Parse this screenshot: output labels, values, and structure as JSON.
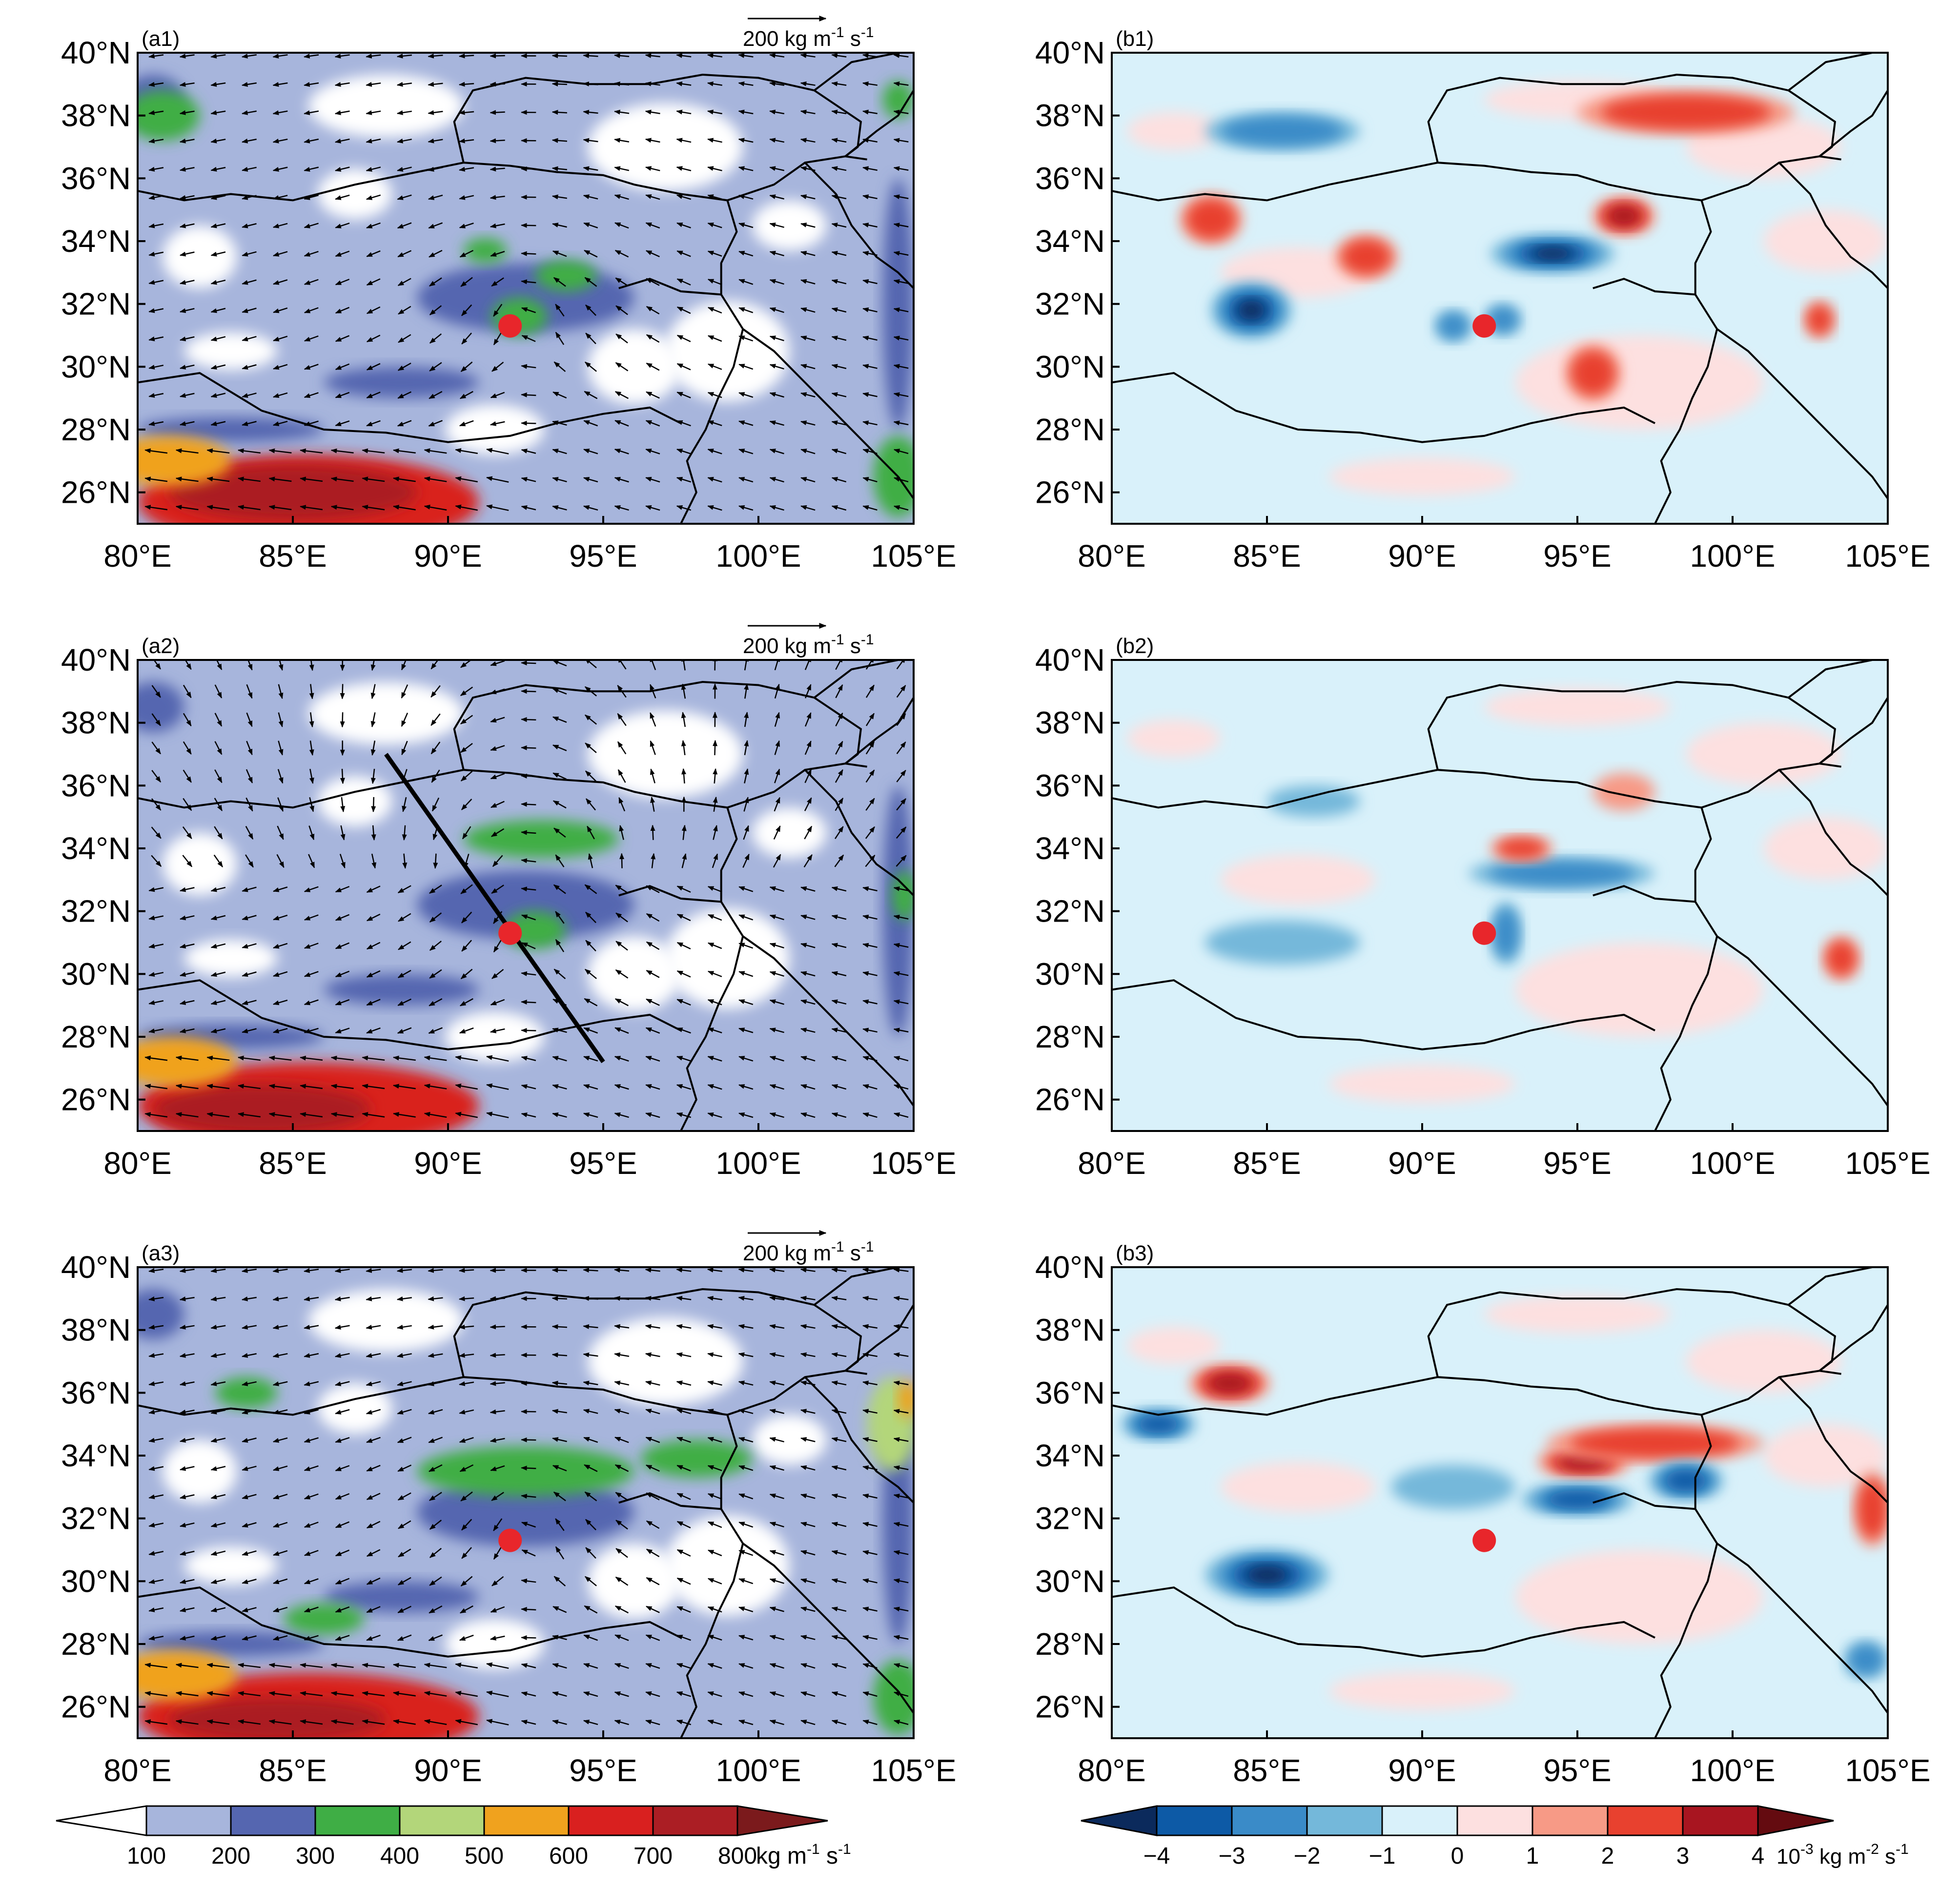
{
  "figure": {
    "lat_ticks": [
      "40°N",
      "38°N",
      "36°N",
      "34°N",
      "32°N",
      "30°N",
      "28°N",
      "26°N"
    ],
    "lon_ticks": [
      "80°E",
      "85°E",
      "90°E",
      "95°E",
      "100°E",
      "105°E"
    ],
    "lat_range": [
      25,
      40
    ],
    "lon_range": [
      80,
      105
    ],
    "station": {
      "lon": 92.0,
      "lat": 31.3,
      "color": "#e8262b"
    },
    "panels_a": [
      {
        "label": "(a1)",
        "ref_vector": {
          "value": "200",
          "unit_pre": "kg m",
          "exp1": "-1",
          "unit_mid": "s",
          "exp2": "-1"
        }
      },
      {
        "label": "(a2)",
        "ref_vector": {
          "value": "200",
          "unit_pre": "kg m",
          "exp1": "-1",
          "unit_mid": "s",
          "exp2": "-1"
        },
        "cross_section": {
          "start": {
            "lon": 88.0,
            "lat": 37.0
          },
          "end": {
            "lon": 95.0,
            "lat": 27.2
          }
        }
      },
      {
        "label": "(a3)",
        "ref_vector": {
          "value": "200",
          "unit_pre": "kg m",
          "exp1": "-1",
          "unit_mid": "s",
          "exp2": "-1"
        }
      }
    ],
    "panels_b": [
      {
        "label": "(b1)"
      },
      {
        "label": "(b2)"
      },
      {
        "label": "(b3)"
      }
    ],
    "colorbar_a": {
      "colors": [
        "#ffffff",
        "#a7b5dc",
        "#5566b0",
        "#3fae45",
        "#b3d67a",
        "#f0a21e",
        "#d9201f",
        "#ab1e24",
        "#7b1a1c"
      ],
      "labels": [
        "100",
        "200",
        "300",
        "400",
        "500",
        "600",
        "700",
        "800"
      ],
      "unit_pre": "kg m",
      "exp1": "-1",
      "unit_mid": "s",
      "exp2": "-1"
    },
    "colorbar_b": {
      "colors": [
        "#0b2a5c",
        "#0d5aa6",
        "#3a8bc8",
        "#74b8da",
        "#d9f1fa",
        "#fde0e0",
        "#f79a86",
        "#e8412f",
        "#a81520",
        "#640b10"
      ],
      "labels": [
        "−4",
        "−3",
        "−2",
        "−1",
        "0",
        "1",
        "2",
        "3",
        "4"
      ],
      "unit_sci": "10",
      "unit_sci_exp": "-3",
      "unit_rest": "kg m",
      "exp1": "-2",
      "unit_mid": "s",
      "exp2": "-1"
    },
    "blobs_a": [
      [
        {
          "lon": 85.5,
          "lat": 25.7,
          "rx": 5.5,
          "ry": 1.5,
          "level": 6
        },
        {
          "lon": 85.0,
          "lat": 26.0,
          "rx": 4.0,
          "ry": 0.9,
          "level": 7
        },
        {
          "lon": 81.0,
          "lat": 27.0,
          "rx": 2.0,
          "ry": 0.8,
          "level": 5
        },
        {
          "lon": 80.8,
          "lat": 38.0,
          "rx": 1.2,
          "ry": 0.8,
          "level": 3
        },
        {
          "lon": 92.3,
          "lat": 31.6,
          "rx": 0.9,
          "ry": 0.6,
          "level": 3
        },
        {
          "lon": 93.8,
          "lat": 32.9,
          "rx": 1.0,
          "ry": 0.5,
          "level": 3
        },
        {
          "lon": 91.2,
          "lat": 33.7,
          "rx": 0.7,
          "ry": 0.4,
          "level": 3
        },
        {
          "lon": 104.5,
          "lat": 26.5,
          "rx": 0.8,
          "ry": 1.3,
          "level": 3
        },
        {
          "lon": 104.5,
          "lat": 38.5,
          "rx": 0.5,
          "ry": 0.6,
          "level": 3
        }
      ],
      [
        {
          "lon": 85.5,
          "lat": 25.8,
          "rx": 5.5,
          "ry": 1.4,
          "level": 6
        },
        {
          "lon": 84.0,
          "lat": 25.7,
          "rx": 3.5,
          "ry": 0.8,
          "level": 7
        },
        {
          "lon": 81.2,
          "lat": 27.2,
          "rx": 2.0,
          "ry": 0.8,
          "level": 5
        },
        {
          "lon": 93.0,
          "lat": 34.3,
          "rx": 2.5,
          "ry": 0.6,
          "level": 3
        },
        {
          "lon": 92.8,
          "lat": 31.4,
          "rx": 1.0,
          "ry": 0.6,
          "level": 3
        },
        {
          "lon": 104.7,
          "lat": 32.5,
          "rx": 0.4,
          "ry": 0.8,
          "level": 3
        }
      ],
      [
        {
          "lon": 85.5,
          "lat": 25.7,
          "rx": 5.5,
          "ry": 1.4,
          "level": 6
        },
        {
          "lon": 84.5,
          "lat": 25.6,
          "rx": 3.5,
          "ry": 0.7,
          "level": 7
        },
        {
          "lon": 81.2,
          "lat": 27.0,
          "rx": 2.0,
          "ry": 0.8,
          "level": 5
        },
        {
          "lon": 83.5,
          "lat": 36.0,
          "rx": 1.0,
          "ry": 0.5,
          "level": 3
        },
        {
          "lon": 92.5,
          "lat": 33.5,
          "rx": 3.5,
          "ry": 0.8,
          "level": 3
        },
        {
          "lon": 98.0,
          "lat": 33.9,
          "rx": 1.8,
          "ry": 0.6,
          "level": 3
        },
        {
          "lon": 86.0,
          "lat": 28.8,
          "rx": 1.3,
          "ry": 0.5,
          "level": 3
        },
        {
          "lon": 104.3,
          "lat": 35.0,
          "rx": 0.8,
          "ry": 1.5,
          "level": 4
        },
        {
          "lon": 104.8,
          "lat": 35.8,
          "rx": 0.3,
          "ry": 0.6,
          "level": 5
        },
        {
          "lon": 104.5,
          "lat": 26.3,
          "rx": 0.8,
          "ry": 1.2,
          "level": 3
        }
      ]
    ],
    "blobs_b": [
      [
        {
          "lon": 84.5,
          "lat": 31.8,
          "rx": 1.3,
          "ry": 0.9,
          "v": -4
        },
        {
          "lon": 94.2,
          "lat": 33.6,
          "rx": 2.0,
          "ry": 0.6,
          "v": -4
        },
        {
          "lon": 96.5,
          "lat": 34.8,
          "rx": 1.0,
          "ry": 0.6,
          "v": 3
        },
        {
          "lon": 98.5,
          "lat": 38.1,
          "rx": 3.5,
          "ry": 0.7,
          "v": 2
        },
        {
          "lon": 83.2,
          "lat": 34.7,
          "rx": 1.0,
          "ry": 0.8,
          "v": 2
        },
        {
          "lon": 88.2,
          "lat": 33.5,
          "rx": 1.0,
          "ry": 0.7,
          "v": 2
        },
        {
          "lon": 91.0,
          "lat": 31.3,
          "rx": 0.6,
          "ry": 0.5,
          "v": -2
        },
        {
          "lon": 92.6,
          "lat": 31.5,
          "rx": 0.6,
          "ry": 0.5,
          "v": -2
        },
        {
          "lon": 95.5,
          "lat": 29.8,
          "rx": 0.9,
          "ry": 0.9,
          "v": 2
        },
        {
          "lon": 85.5,
          "lat": 37.5,
          "rx": 2.5,
          "ry": 0.6,
          "v": -2
        },
        {
          "lon": 102.8,
          "lat": 31.5,
          "rx": 0.5,
          "ry": 0.6,
          "v": 2
        }
      ],
      [
        {
          "lon": 94.5,
          "lat": 33.2,
          "rx": 3.0,
          "ry": 0.5,
          "v": -2
        },
        {
          "lon": 92.7,
          "lat": 31.3,
          "rx": 0.5,
          "ry": 1.0,
          "v": -2
        },
        {
          "lon": 93.2,
          "lat": 34.0,
          "rx": 1.0,
          "ry": 0.4,
          "v": 2
        },
        {
          "lon": 96.5,
          "lat": 35.8,
          "rx": 1.0,
          "ry": 0.6,
          "v": 1
        },
        {
          "lon": 103.5,
          "lat": 30.5,
          "rx": 0.6,
          "ry": 0.7,
          "v": 2
        },
        {
          "lon": 85.5,
          "lat": 31.0,
          "rx": 2.5,
          "ry": 0.7,
          "v": -1
        },
        {
          "lon": 86.5,
          "lat": 35.5,
          "rx": 1.5,
          "ry": 0.5,
          "v": -1
        }
      ],
      [
        {
          "lon": 85.0,
          "lat": 30.2,
          "rx": 2.0,
          "ry": 0.8,
          "v": -4
        },
        {
          "lon": 83.8,
          "lat": 36.3,
          "rx": 1.3,
          "ry": 0.6,
          "v": 3
        },
        {
          "lon": 95.2,
          "lat": 33.8,
          "rx": 1.5,
          "ry": 0.5,
          "v": 3
        },
        {
          "lon": 97.5,
          "lat": 34.4,
          "rx": 3.5,
          "ry": 0.6,
          "v": 2
        },
        {
          "lon": 95.0,
          "lat": 32.6,
          "rx": 1.8,
          "ry": 0.5,
          "v": -3
        },
        {
          "lon": 98.5,
          "lat": 33.2,
          "rx": 1.2,
          "ry": 0.6,
          "v": -3
        },
        {
          "lon": 81.5,
          "lat": 35.0,
          "rx": 1.2,
          "ry": 0.5,
          "v": -3
        },
        {
          "lon": 104.5,
          "lat": 32.3,
          "rx": 0.6,
          "ry": 1.2,
          "v": 2
        },
        {
          "lon": 104.3,
          "lat": 27.5,
          "rx": 0.7,
          "ry": 0.6,
          "v": -2
        },
        {
          "lon": 91.0,
          "lat": 33.0,
          "rx": 2.0,
          "ry": 0.7,
          "v": -1
        }
      ]
    ]
  }
}
